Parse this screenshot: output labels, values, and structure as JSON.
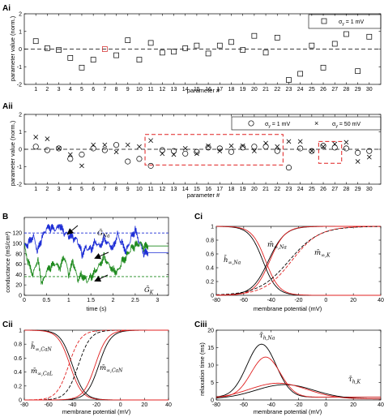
{
  "chart_data": [
    {
      "panel": "Ai",
      "type": "scatter",
      "ylabel": "parameter value (norm.)",
      "xlabel": "parameter #",
      "xlim": [
        0,
        31
      ],
      "ylim": [
        -2,
        2
      ],
      "xticks": [
        1,
        2,
        3,
        4,
        5,
        6,
        7,
        8,
        9,
        10,
        11,
        12,
        13,
        14,
        15,
        16,
        17,
        18,
        19,
        20,
        21,
        22,
        23,
        24,
        25,
        26,
        27,
        28,
        29,
        30
      ],
      "yticks": [
        -2,
        -1,
        0,
        1,
        2
      ],
      "marker": "square",
      "legend": "σ_y = 1 mV",
      "x": [
        1,
        2,
        3,
        4,
        5,
        6,
        7,
        8,
        9,
        10,
        11,
        12,
        13,
        14,
        15,
        16,
        17,
        18,
        19,
        20,
        21,
        22,
        23,
        24,
        25,
        26,
        27,
        28,
        29,
        30
      ],
      "y": [
        0.45,
        0.05,
        -0.05,
        -0.5,
        -1.05,
        -0.6,
        0,
        -0.35,
        0.5,
        -0.6,
        0.35,
        -0.2,
        -0.15,
        0.05,
        0.2,
        -0.25,
        0.2,
        0.4,
        -0.05,
        0.75,
        -0.2,
        0.65,
        -1.75,
        -1.4,
        0.2,
        -1.05,
        0.3,
        0.85,
        -1.25,
        0.7
      ],
      "highlight_x": 7,
      "highlight_color": "#d22222"
    },
    {
      "panel": "Aii",
      "type": "scatter",
      "ylabel": "parameter value (norm.)",
      "xlabel": "parameter #",
      "xlim": [
        0,
        31
      ],
      "ylim": [
        -2,
        2
      ],
      "xticks": [
        1,
        2,
        3,
        4,
        5,
        6,
        7,
        8,
        9,
        10,
        11,
        12,
        13,
        14,
        15,
        16,
        17,
        18,
        19,
        20,
        21,
        22,
        23,
        24,
        25,
        26,
        27,
        28,
        29,
        30
      ],
      "yticks": [
        -2,
        -1,
        0,
        1,
        2
      ],
      "series": [
        {
          "name": "σ_y = 1 mV",
          "marker": "circle",
          "y": [
            0.15,
            -0.05,
            0.05,
            -0.55,
            -0.3,
            0.05,
            -0.05,
            0.25,
            -0.7,
            -0.55,
            -0.95,
            -0.05,
            -0.1,
            -0.25,
            -0.15,
            0.1,
            0.05,
            -0.15,
            0.1,
            0.15,
            0.15,
            -0.1,
            -1.05,
            0.05,
            -0.1,
            0.2,
            0.1,
            0.05,
            -0.2,
            -0.1
          ]
        },
        {
          "name": "σ_y = 50 mV",
          "marker": "cross",
          "y": [
            0.7,
            0.6,
            0.05,
            -0.3,
            -0.95,
            0.25,
            0.25,
            -0.15,
            0.25,
            0.15,
            0.5,
            -0.25,
            -0.3,
            0.05,
            -0.25,
            0.2,
            -0.1,
            0.2,
            0.2,
            -0.1,
            0.35,
            0.15,
            0.45,
            0.45,
            -0.1,
            0.15,
            0.3,
            0.4,
            -0.7,
            -0.45
          ]
        }
      ],
      "boxes": [
        [
          10.5,
          22.5,
          -0.9,
          0.85
        ],
        [
          25.6,
          27.6,
          -0.8,
          0.45
        ]
      ],
      "box_color": "#e02020"
    },
    {
      "panel": "B",
      "type": "line",
      "xlabel": "time (s)",
      "ylabel": "conductance (mS/cm²)",
      "xlim": [
        0,
        3.25
      ],
      "ylim": [
        0,
        150
      ],
      "xticks": [
        0,
        0.5,
        1,
        1.5,
        2,
        2.5,
        3
      ],
      "yticks": [
        0,
        20,
        40,
        60,
        80,
        100,
        120
      ],
      "labels": [
        {
          "text": "Ḡ",
          "sub": "Na"
        },
        {
          "text": "Ḡ",
          "sub": "K"
        }
      ],
      "series": [
        {
          "name": "Na",
          "color": "#1f2fd6",
          "ref": 120,
          "t": [
            0,
            0.1,
            0.2,
            0.3,
            0.4,
            0.5,
            0.6,
            0.7,
            0.8,
            0.9,
            1.0,
            1.1,
            1.2,
            1.3,
            1.4,
            1.5,
            1.6,
            1.7,
            1.8,
            1.9,
            2.0,
            2.1,
            2.2,
            2.3,
            2.4,
            2.5,
            2.6,
            2.7,
            2.8,
            3.0,
            3.25
          ],
          "v": [
            95,
            100,
            115,
            85,
            110,
            128,
            130,
            125,
            133,
            120,
            115,
            110,
            105,
            80,
            92,
            88,
            105,
            95,
            110,
            100,
            92,
            118,
            100,
            85,
            110,
            125,
            100,
            80,
            82,
            82,
            82
          ]
        },
        {
          "name": "K",
          "color": "#1e8a1e",
          "ref": 36,
          "t": [
            0,
            0.1,
            0.2,
            0.3,
            0.4,
            0.5,
            0.6,
            0.7,
            0.8,
            0.9,
            1.0,
            1.1,
            1.2,
            1.3,
            1.4,
            1.5,
            1.6,
            1.7,
            1.8,
            1.9,
            2.0,
            2.1,
            2.2,
            2.3,
            2.4,
            2.5,
            2.6,
            2.7,
            2.8,
            3.0,
            3.25
          ],
          "v": [
            95,
            60,
            40,
            70,
            20,
            45,
            55,
            60,
            50,
            75,
            40,
            65,
            30,
            40,
            28,
            35,
            48,
            60,
            75,
            60,
            50,
            45,
            65,
            75,
            90,
            95,
            100,
            92,
            95,
            95,
            95
          ]
        }
      ]
    },
    {
      "panel": "Ci",
      "type": "line",
      "xlabel": "membrane potential (mV)",
      "xlim": [
        -80,
        40
      ],
      "ylim": [
        0,
        1
      ],
      "xticks": [
        -80,
        -60,
        -40,
        -20,
        0,
        20,
        40
      ],
      "yticks": [
        0,
        0.2,
        0.4,
        0.6,
        0.8,
        1
      ],
      "labels": [
        {
          "text": "m̄",
          "sub": "∞,Na"
        },
        {
          "text": "h̄",
          "sub": "∞,Na"
        },
        {
          "text": "m̄",
          "sub": "∞,K"
        }
      ],
      "curves": [
        {
          "color": "#000000",
          "dash": false,
          "vh": -42,
          "k": 6
        },
        {
          "color": "#e02020",
          "dash": false,
          "vh": -41,
          "k": 5.5
        },
        {
          "color": "#000000",
          "dash": false,
          "vh": -46,
          "k": -5
        },
        {
          "color": "#e02020",
          "dash": false,
          "vh": -44,
          "k": -5
        },
        {
          "color": "#000000",
          "dash": true,
          "vh": -27,
          "k": 11
        },
        {
          "color": "#e02020",
          "dash": true,
          "vh": -25,
          "k": 10
        }
      ]
    },
    {
      "panel": "Cii",
      "type": "line",
      "xlabel": "membrane potential (mV)",
      "xlim": [
        -80,
        40
      ],
      "ylim": [
        0,
        1
      ],
      "xticks": [
        -80,
        -60,
        -40,
        -20,
        0,
        20,
        40
      ],
      "yticks": [
        0,
        0.2,
        0.4,
        0.6,
        0.8,
        1
      ],
      "labels": [
        {
          "text": "h̄",
          "sub": "∞,CaN"
        },
        {
          "text": "m̄",
          "sub": "∞,CaL"
        },
        {
          "text": "m̄",
          "sub": "∞,CaN"
        }
      ],
      "curves": [
        {
          "color": "#000000",
          "dash": false,
          "vh": -40,
          "k": -5
        },
        {
          "color": "#e02020",
          "dash": false,
          "vh": -42,
          "k": -5
        },
        {
          "color": "#000000",
          "dash": true,
          "vh": -35,
          "k": 5
        },
        {
          "color": "#e02020",
          "dash": true,
          "vh": -43,
          "k": 5
        },
        {
          "color": "#000000",
          "dash": false,
          "vh": -18,
          "k": 5
        },
        {
          "color": "#e02020",
          "dash": false,
          "vh": -21,
          "k": 5
        }
      ]
    },
    {
      "panel": "Ciii",
      "type": "line",
      "xlabel": "membrane potential (mV)",
      "ylabel": "relaxation time (ms)",
      "xlim": [
        -80,
        40
      ],
      "ylim": [
        0,
        20
      ],
      "xticks": [
        -80,
        -60,
        -40,
        -20,
        0,
        20,
        40
      ],
      "yticks": [
        0,
        5,
        10,
        15,
        20
      ],
      "labels": [
        {
          "text": "τ̄",
          "sub": "h,Na"
        },
        {
          "text": "τ̄",
          "sub": "h,K"
        }
      ],
      "curves": [
        {
          "color": "#000000",
          "dash": false,
          "base": 0.8,
          "peak": 15.2,
          "v0": -47,
          "w": 15
        },
        {
          "color": "#e02020",
          "dash": false,
          "base": 0.8,
          "peak": 11.5,
          "v0": -44,
          "w": 15
        },
        {
          "color": "#000000",
          "dash": false,
          "base": 0.3,
          "peak": 4.1,
          "v0": -30,
          "w": 30
        },
        {
          "color": "#e02020",
          "dash": false,
          "base": 0.3,
          "peak": 4.5,
          "v0": -35,
          "w": 30
        }
      ]
    }
  ],
  "panel_labels": {
    "Ai": "Ai",
    "Aii": "Aii",
    "B": "B",
    "Ci": "Ci",
    "Cii": "Cii",
    "Ciii": "Ciii"
  },
  "texts": {
    "ai_ylabel": "parameter value (norm.)",
    "ai_xlabel": "parameter #",
    "ai_legend": "σ",
    "ai_legend_tail": " = 1 mV",
    "aii_ylabel": "parameter value (norm.)",
    "aii_xlabel": "parameter #",
    "aii_leg1_tail": " = 1 mV",
    "aii_leg2_tail": " = 50 mV",
    "b_ylabel": "conductance (mS/cm²)",
    "b_xlabel": "time (s)",
    "ci_xlabel": "membrane potential (mV)",
    "cii_xlabel": "membrane potential (mV)",
    "ciii_xlabel": "membrane potential (mV)",
    "ciii_ylabel": "relaxation time (ms)",
    "sigma": "σ",
    "sub_y": "y"
  }
}
